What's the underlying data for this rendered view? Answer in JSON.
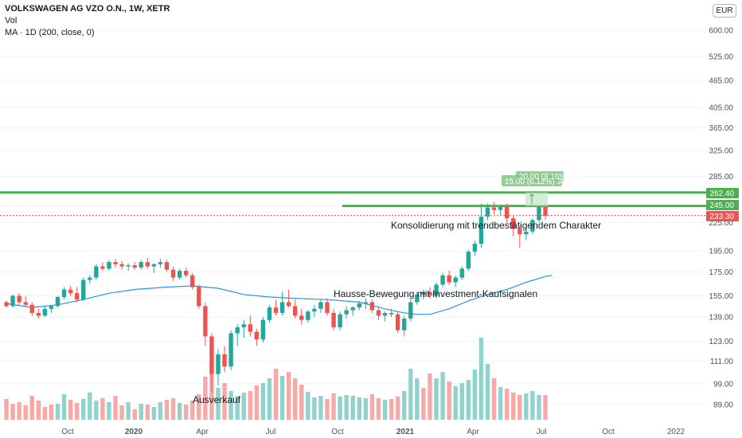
{
  "legend": {
    "title": "VOLKSWAGEN AG VZO O.N., 1W, XETR",
    "vol": "Vol",
    "ma": "MA · 1D (200, close, 0)"
  },
  "currency_button": "EUR",
  "chart_data": {
    "type": "candlestick",
    "symbol": "VOLKSWAGEN AG VZO O.N.",
    "interval": "1W",
    "exchange": "XETR",
    "currency": "EUR",
    "y_scale": "log",
    "y_ticks": [
      "89.00",
      "99.00",
      "111.00",
      "123.00",
      "139.00",
      "155.00",
      "175.00",
      "195.00",
      "225.00",
      "245.00",
      "285.00",
      "325.00",
      "365.00",
      "405.00",
      "465.00",
      "525.00",
      "600.00"
    ],
    "x_ticks": [
      "Oct",
      "2020",
      "Apr",
      "Jul",
      "Oct",
      "2021",
      "Apr",
      "Jul",
      "Oct",
      "2022"
    ],
    "price_labels": [
      {
        "value": "262.40",
        "color": "#4caf50"
      },
      {
        "value": "245.00",
        "color": "#4caf50"
      },
      {
        "value": "233.30",
        "color": "#ef5350"
      }
    ],
    "horizontal_lines": [
      262.4,
      245.0
    ],
    "current_price": 233.3,
    "annotations": [
      "Konsolidierung mit trendbestätigendem Charakter",
      "Hausse-Bewegung mit Investment-Kaufsignalen",
      "Ausverkauf"
    ],
    "target_labels": [
      "20.00 (8.16%) 400",
      "15.00 (6.12%) 300"
    ],
    "candles": [
      [
        150,
        151,
        146,
        147
      ],
      [
        147,
        156,
        146,
        155
      ],
      [
        155,
        157,
        148,
        150
      ],
      [
        150,
        155,
        147,
        148
      ],
      [
        148,
        150,
        140,
        142
      ],
      [
        142,
        145,
        138,
        140
      ],
      [
        140,
        147,
        139,
        145
      ],
      [
        145,
        148,
        142,
        147
      ],
      [
        147,
        155,
        146,
        154
      ],
      [
        154,
        162,
        152,
        160
      ],
      [
        160,
        163,
        155,
        157
      ],
      [
        157,
        162,
        150,
        152
      ],
      [
        152,
        170,
        151,
        168
      ],
      [
        168,
        172,
        165,
        170
      ],
      [
        170,
        182,
        168,
        180
      ],
      [
        180,
        184,
        176,
        178
      ],
      [
        178,
        186,
        176,
        184
      ],
      [
        184,
        187,
        179,
        182
      ],
      [
        182,
        185,
        177,
        180
      ],
      [
        180,
        183,
        176,
        181
      ],
      [
        181,
        184,
        177,
        179
      ],
      [
        179,
        186,
        177,
        184
      ],
      [
        184,
        188,
        178,
        180
      ],
      [
        180,
        183,
        174,
        182
      ],
      [
        182,
        187,
        179,
        184
      ],
      [
        184,
        186,
        175,
        177
      ],
      [
        177,
        180,
        167,
        170
      ],
      [
        170,
        178,
        168,
        176
      ],
      [
        176,
        179,
        170,
        172
      ],
      [
        172,
        174,
        160,
        162
      ],
      [
        162,
        164,
        145,
        147
      ],
      [
        147,
        150,
        120,
        126
      ],
      [
        126,
        128,
        95,
        104
      ],
      [
        104,
        118,
        98,
        115
      ],
      [
        115,
        120,
        105,
        108
      ],
      [
        108,
        130,
        106,
        128
      ],
      [
        128,
        134,
        120,
        132
      ],
      [
        132,
        137,
        125,
        134
      ],
      [
        134,
        140,
        126,
        129
      ],
      [
        129,
        131,
        120,
        124
      ],
      [
        124,
        139,
        122,
        137
      ],
      [
        137,
        148,
        135,
        146
      ],
      [
        146,
        152,
        140,
        142
      ],
      [
        142,
        158,
        140,
        150
      ],
      [
        150,
        160,
        146,
        147
      ],
      [
        147,
        152,
        138,
        140
      ],
      [
        140,
        145,
        134,
        137
      ],
      [
        137,
        144,
        135,
        143
      ],
      [
        143,
        148,
        139,
        145
      ],
      [
        145,
        152,
        142,
        150
      ],
      [
        150,
        153,
        140,
        142
      ],
      [
        142,
        145,
        130,
        132
      ],
      [
        132,
        143,
        130,
        141
      ],
      [
        141,
        147,
        138,
        144
      ],
      [
        144,
        147,
        140,
        146
      ],
      [
        146,
        151,
        144,
        149
      ],
      [
        149,
        153,
        145,
        150
      ],
      [
        150,
        152,
        142,
        144
      ],
      [
        144,
        146,
        137,
        140
      ],
      [
        140,
        143,
        136,
        142
      ],
      [
        142,
        145,
        139,
        141
      ],
      [
        141,
        143,
        128,
        130
      ],
      [
        130,
        140,
        126,
        138
      ],
      [
        138,
        152,
        136,
        150
      ],
      [
        150,
        158,
        148,
        156
      ],
      [
        156,
        160,
        152,
        158
      ],
      [
        158,
        162,
        153,
        155
      ],
      [
        155,
        166,
        153,
        164
      ],
      [
        164,
        174,
        162,
        172
      ],
      [
        172,
        176,
        164,
        166
      ],
      [
        166,
        172,
        162,
        170
      ],
      [
        170,
        180,
        168,
        178
      ],
      [
        178,
        196,
        176,
        194
      ],
      [
        194,
        205,
        190,
        202
      ],
      [
        202,
        248,
        198,
        232
      ],
      [
        232,
        248,
        228,
        243
      ],
      [
        243,
        250,
        235,
        240
      ],
      [
        240,
        246,
        234,
        244
      ],
      [
        244,
        248,
        225,
        230
      ],
      [
        230,
        233,
        210,
        218
      ],
      [
        218,
        222,
        198,
        212
      ],
      [
        212,
        218,
        206,
        215
      ],
      [
        215,
        230,
        212,
        228
      ],
      [
        228,
        246,
        225,
        244
      ],
      [
        244,
        248,
        228,
        233
      ]
    ],
    "volume": [
      [
        26,
        0
      ],
      [
        20,
        0
      ],
      [
        22,
        0
      ],
      [
        18,
        0
      ],
      [
        30,
        0
      ],
      [
        24,
        0
      ],
      [
        16,
        0
      ],
      [
        19,
        0
      ],
      [
        20,
        1
      ],
      [
        32,
        1
      ],
      [
        25,
        0
      ],
      [
        21,
        0
      ],
      [
        26,
        1
      ],
      [
        34,
        1
      ],
      [
        24,
        1
      ],
      [
        27,
        0
      ],
      [
        22,
        1
      ],
      [
        30,
        0
      ],
      [
        18,
        0
      ],
      [
        22,
        1
      ],
      [
        13,
        0
      ],
      [
        20,
        1
      ],
      [
        19,
        0
      ],
      [
        16,
        1
      ],
      [
        22,
        1
      ],
      [
        25,
        0
      ],
      [
        27,
        0
      ],
      [
        21,
        1
      ],
      [
        19,
        0
      ],
      [
        24,
        0
      ],
      [
        32,
        0
      ],
      [
        54,
        0
      ],
      [
        71,
        0
      ],
      [
        40,
        1
      ],
      [
        46,
        0
      ],
      [
        36,
        1
      ],
      [
        30,
        1
      ],
      [
        34,
        1
      ],
      [
        36,
        0
      ],
      [
        43,
        0
      ],
      [
        46,
        1
      ],
      [
        52,
        1
      ],
      [
        64,
        0
      ],
      [
        55,
        1
      ],
      [
        60,
        0
      ],
      [
        52,
        0
      ],
      [
        44,
        0
      ],
      [
        35,
        1
      ],
      [
        28,
        1
      ],
      [
        30,
        1
      ],
      [
        26,
        0
      ],
      [
        33,
        0
      ],
      [
        29,
        1
      ],
      [
        31,
        1
      ],
      [
        30,
        1
      ],
      [
        28,
        1
      ],
      [
        27,
        1
      ],
      [
        32,
        0
      ],
      [
        27,
        0
      ],
      [
        25,
        1
      ],
      [
        26,
        0
      ],
      [
        29,
        0
      ],
      [
        36,
        1
      ],
      [
        64,
        1
      ],
      [
        52,
        1
      ],
      [
        40,
        0
      ],
      [
        58,
        0
      ],
      [
        52,
        1
      ],
      [
        60,
        1
      ],
      [
        48,
        0
      ],
      [
        42,
        1
      ],
      [
        46,
        1
      ],
      [
        50,
        1
      ],
      [
        63,
        1
      ],
      [
        103,
        1
      ],
      [
        70,
        1
      ],
      [
        52,
        0
      ],
      [
        41,
        1
      ],
      [
        39,
        0
      ],
      [
        34,
        0
      ],
      [
        31,
        0
      ],
      [
        33,
        1
      ],
      [
        36,
        1
      ],
      [
        31,
        1
      ],
      [
        31,
        0
      ]
    ],
    "ma_200": [
      [
        0,
        149
      ],
      [
        4,
        146
      ],
      [
        8,
        148
      ],
      [
        12,
        152
      ],
      [
        16,
        157
      ],
      [
        20,
        160
      ],
      [
        25,
        162
      ],
      [
        29,
        163
      ],
      [
        33,
        161
      ],
      [
        37,
        156
      ],
      [
        41,
        154
      ],
      [
        45,
        153
      ],
      [
        50,
        152
      ],
      [
        55,
        150
      ],
      [
        59,
        145
      ],
      [
        62,
        142
      ],
      [
        64,
        141
      ],
      [
        66,
        141
      ],
      [
        69,
        145
      ],
      [
        72,
        151
      ],
      [
        75,
        156
      ],
      [
        78,
        160
      ],
      [
        81,
        166
      ],
      [
        84,
        171
      ],
      [
        85,
        172
      ]
    ]
  }
}
